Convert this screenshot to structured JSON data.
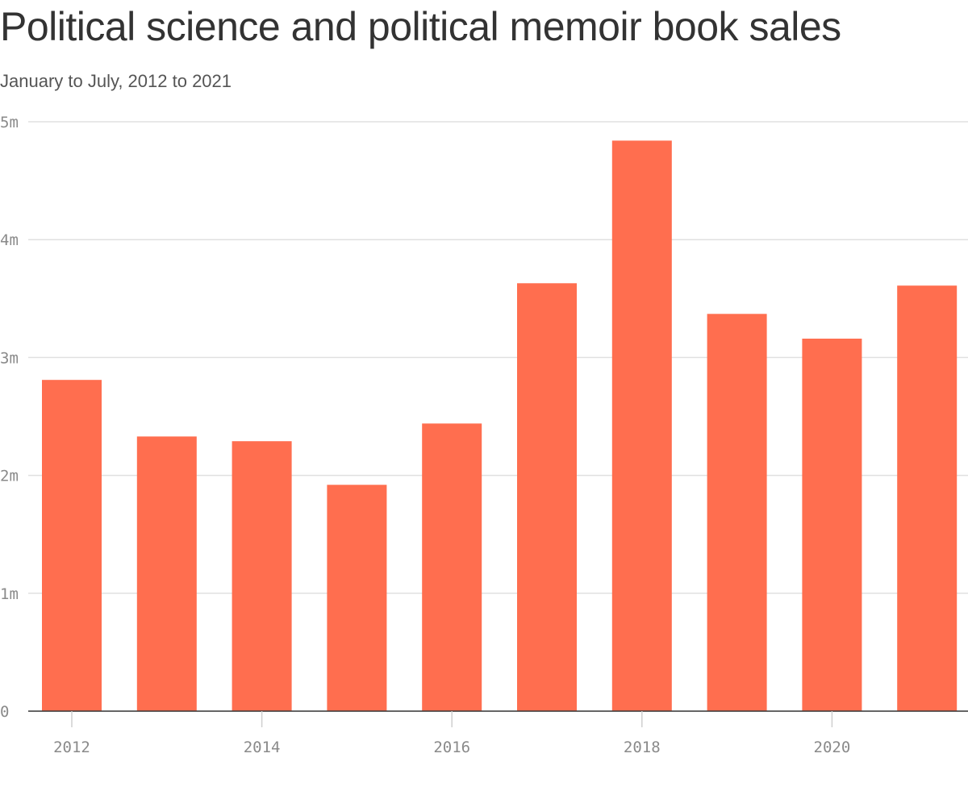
{
  "chart_data": {
    "type": "bar",
    "title": "Political science and political memoir book sales",
    "subtitle": "January to July, 2012 to 2021",
    "categories": [
      2012,
      2013,
      2014,
      2015,
      2016,
      2017,
      2018,
      2019,
      2020,
      2021
    ],
    "values": [
      2810000,
      2330000,
      2290000,
      1920000,
      2440000,
      3630000,
      4840000,
      3370000,
      3160000,
      3610000
    ],
    "ylim": [
      0,
      5000000
    ],
    "yticks": [
      0,
      1000000,
      2000000,
      3000000,
      4000000,
      5000000
    ],
    "ytick_labels": [
      "0",
      "1m",
      "2m",
      "3m",
      "4m",
      "5m"
    ],
    "xticks": [
      2012,
      2014,
      2016,
      2018,
      2020
    ],
    "xtick_labels": [
      "2012",
      "2014",
      "2016",
      "2018",
      "2020"
    ],
    "xlabel": "",
    "ylabel": "",
    "grid": true,
    "legend": "none",
    "colors": {
      "bar": "#ff6e4f",
      "grid": "#e0e0e0",
      "axis": "#333333",
      "text": "#333333",
      "tick_text": "#8a8a8a"
    }
  }
}
